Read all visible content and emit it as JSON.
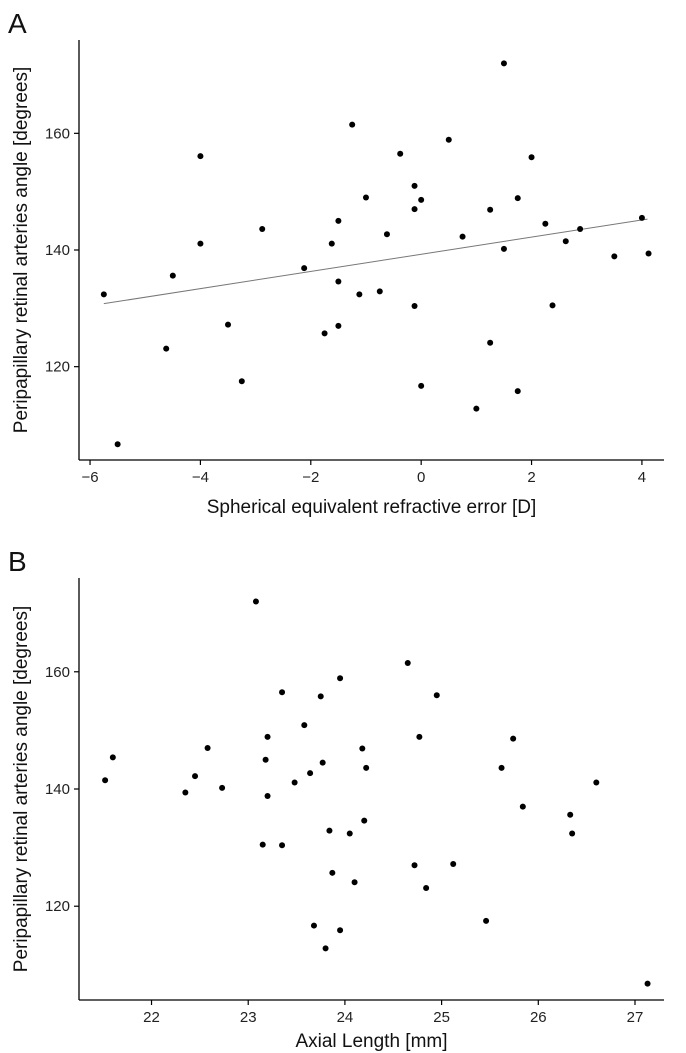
{
  "chart_data": [
    {
      "panel": "A",
      "type": "scatter",
      "title": "",
      "xlabel": "Spherical equivalent refractive error [D]",
      "ylabel": "Peripapillary retinal arteries angle [degrees]",
      "xlim": [
        -6.2,
        4.4
      ],
      "ylim": [
        104,
        176
      ],
      "xticks": [
        -6,
        -4,
        -2,
        0,
        2,
        4
      ],
      "yticks": [
        120,
        140,
        160
      ],
      "grid": false,
      "legend": "none",
      "trendline": {
        "x": [
          -5.75,
          4.1
        ],
        "y": [
          130.8,
          145.3
        ]
      },
      "points": [
        {
          "x": -5.75,
          "y": 132.4
        },
        {
          "x": -5.5,
          "y": 106.7
        },
        {
          "x": -4.62,
          "y": 123.1
        },
        {
          "x": -4.5,
          "y": 135.6
        },
        {
          "x": -4.0,
          "y": 156.1
        },
        {
          "x": -4.0,
          "y": 141.1
        },
        {
          "x": -3.5,
          "y": 127.2
        },
        {
          "x": -3.25,
          "y": 117.5
        },
        {
          "x": -2.88,
          "y": 143.6
        },
        {
          "x": -2.12,
          "y": 136.9
        },
        {
          "x": -1.75,
          "y": 125.7
        },
        {
          "x": -1.62,
          "y": 141.1
        },
        {
          "x": -1.5,
          "y": 145.0
        },
        {
          "x": -1.5,
          "y": 134.6
        },
        {
          "x": -1.5,
          "y": 127.0
        },
        {
          "x": -1.25,
          "y": 161.5
        },
        {
          "x": -1.12,
          "y": 132.4
        },
        {
          "x": -1.0,
          "y": 149.0
        },
        {
          "x": -0.75,
          "y": 132.9
        },
        {
          "x": -0.62,
          "y": 142.7
        },
        {
          "x": -0.38,
          "y": 156.5
        },
        {
          "x": -0.12,
          "y": 151.0
        },
        {
          "x": -0.12,
          "y": 147.0
        },
        {
          "x": -0.12,
          "y": 130.4
        },
        {
          "x": 0.0,
          "y": 148.6
        },
        {
          "x": 0.0,
          "y": 116.7
        },
        {
          "x": 0.5,
          "y": 158.9
        },
        {
          "x": 0.75,
          "y": 142.3
        },
        {
          "x": 1.0,
          "y": 112.8
        },
        {
          "x": 1.25,
          "y": 146.9
        },
        {
          "x": 1.25,
          "y": 124.1
        },
        {
          "x": 1.5,
          "y": 172.0
        },
        {
          "x": 1.5,
          "y": 140.2
        },
        {
          "x": 1.75,
          "y": 148.9
        },
        {
          "x": 1.75,
          "y": 115.8
        },
        {
          "x": 2.0,
          "y": 155.9
        },
        {
          "x": 2.25,
          "y": 144.5
        },
        {
          "x": 2.38,
          "y": 130.5
        },
        {
          "x": 2.62,
          "y": 141.5
        },
        {
          "x": 2.88,
          "y": 143.6
        },
        {
          "x": 3.5,
          "y": 138.9
        },
        {
          "x": 4.0,
          "y": 145.5
        },
        {
          "x": 4.12,
          "y": 139.4
        }
      ]
    },
    {
      "panel": "B",
      "type": "scatter",
      "title": "",
      "xlabel": "Axial Length [mm]",
      "ylabel": "Peripapillary retinal arteries angle [degrees]",
      "xlim": [
        21.25,
        27.3
      ],
      "ylim": [
        104,
        176
      ],
      "xticks": [
        22,
        23,
        24,
        25,
        26,
        27
      ],
      "yticks": [
        120,
        140,
        160
      ],
      "grid": false,
      "legend": "none",
      "points": [
        {
          "x": 21.52,
          "y": 141.5
        },
        {
          "x": 21.6,
          "y": 145.4
        },
        {
          "x": 22.35,
          "y": 139.4
        },
        {
          "x": 22.45,
          "y": 142.2
        },
        {
          "x": 22.58,
          "y": 147.0
        },
        {
          "x": 22.73,
          "y": 140.2
        },
        {
          "x": 23.08,
          "y": 172.0
        },
        {
          "x": 23.15,
          "y": 130.5
        },
        {
          "x": 23.18,
          "y": 145.0
        },
        {
          "x": 23.2,
          "y": 148.9
        },
        {
          "x": 23.2,
          "y": 138.8
        },
        {
          "x": 23.35,
          "y": 156.5
        },
        {
          "x": 23.35,
          "y": 130.4
        },
        {
          "x": 23.48,
          "y": 141.1
        },
        {
          "x": 23.58,
          "y": 150.9
        },
        {
          "x": 23.64,
          "y": 142.7
        },
        {
          "x": 23.68,
          "y": 116.7
        },
        {
          "x": 23.75,
          "y": 155.8
        },
        {
          "x": 23.77,
          "y": 144.5
        },
        {
          "x": 23.8,
          "y": 112.8
        },
        {
          "x": 23.84,
          "y": 132.9
        },
        {
          "x": 23.87,
          "y": 125.7
        },
        {
          "x": 23.95,
          "y": 158.9
        },
        {
          "x": 23.95,
          "y": 115.9
        },
        {
          "x": 24.05,
          "y": 132.4
        },
        {
          "x": 24.1,
          "y": 124.1
        },
        {
          "x": 24.18,
          "y": 146.9
        },
        {
          "x": 24.2,
          "y": 134.6
        },
        {
          "x": 24.22,
          "y": 143.6
        },
        {
          "x": 24.65,
          "y": 161.5
        },
        {
          "x": 24.72,
          "y": 127.0
        },
        {
          "x": 24.77,
          "y": 148.9
        },
        {
          "x": 24.84,
          "y": 123.1
        },
        {
          "x": 24.95,
          "y": 156.0
        },
        {
          "x": 25.12,
          "y": 127.2
        },
        {
          "x": 25.46,
          "y": 117.5
        },
        {
          "x": 25.62,
          "y": 143.6
        },
        {
          "x": 25.74,
          "y": 148.6
        },
        {
          "x": 25.84,
          "y": 137.0
        },
        {
          "x": 26.33,
          "y": 135.6
        },
        {
          "x": 26.35,
          "y": 132.4
        },
        {
          "x": 26.6,
          "y": 141.1
        },
        {
          "x": 27.13,
          "y": 106.8
        }
      ]
    }
  ]
}
